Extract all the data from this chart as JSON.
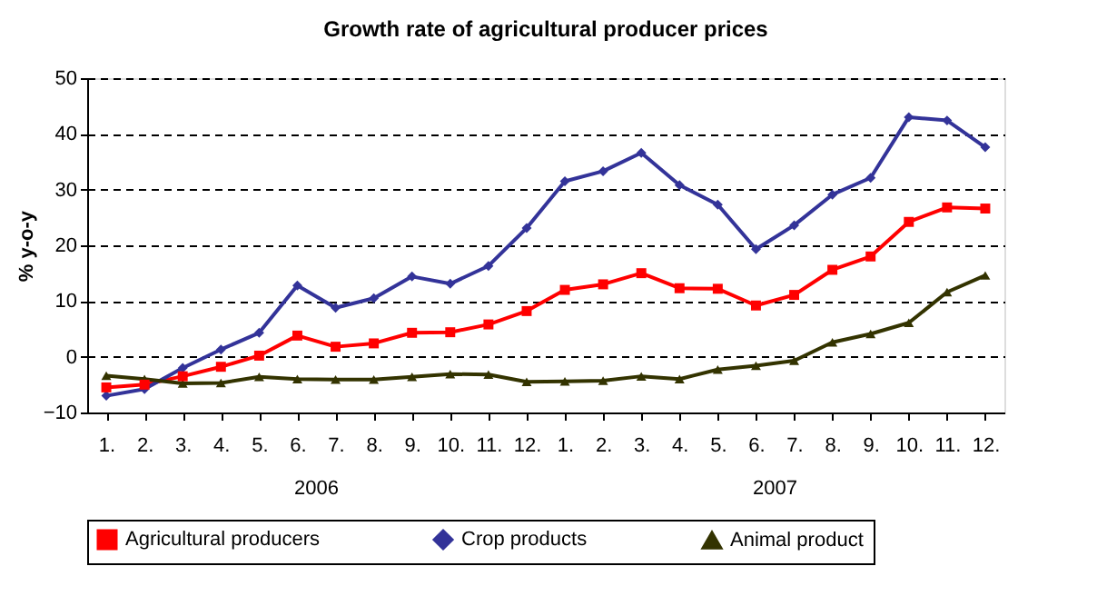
{
  "chart_data": {
    "type": "line",
    "title": "Growth rate of agricultural producer prices",
    "ylabel": "% y-o-y",
    "categories": [
      "1.",
      "2.",
      "3.",
      "4.",
      "5.",
      "6.",
      "7.",
      "8.",
      "9.",
      "10.",
      "11.",
      "12.",
      "1.",
      "2.",
      "3.",
      "4.",
      "5.",
      "6.",
      "7.",
      "8.",
      "9.",
      "10.",
      "11.",
      "12."
    ],
    "annotations": [
      "2006",
      "2007"
    ],
    "series": [
      {
        "name": "Agricultural producers",
        "color": "#ff0000",
        "marker": "square",
        "values": [
          -5.5,
          -5,
          -3.5,
          -1.8,
          0.2,
          3.8,
          1.8,
          2.4,
          4.3,
          4.4,
          5.8,
          8.2,
          12,
          13,
          15,
          12.3,
          12.2,
          9.2,
          11.1,
          15.6,
          18,
          24.2,
          26.8,
          26.6
        ]
      },
      {
        "name": "Crop products",
        "color": "#333399",
        "marker": "diamond",
        "values": [
          -7,
          -5.8,
          -2,
          1.3,
          4.3,
          12.8,
          8.8,
          10.5,
          14.4,
          13.1,
          16.3,
          23.1,
          31.5,
          33.3,
          36.6,
          30.8,
          27.3,
          19.3,
          23.6,
          29.1,
          32.1,
          43,
          42.4,
          37.6
        ]
      },
      {
        "name": "Animal product",
        "color": "#333300",
        "marker": "triangle",
        "values": [
          -3.4,
          -4,
          -4.8,
          -4.7,
          -3.6,
          -4,
          -4.1,
          -4.1,
          -3.6,
          -3.1,
          -3.2,
          -4.5,
          -4.4,
          -4.3,
          -3.5,
          -4,
          -2.3,
          -1.6,
          -0.7,
          2.6,
          4.1,
          6.1,
          11.6,
          14.6
        ]
      }
    ],
    "ylim": [
      -10,
      50
    ],
    "yticks": [
      -10,
      0,
      10,
      20,
      30,
      40,
      50
    ],
    "grid": "y",
    "legend": "bottom",
    "line_style": "solid"
  }
}
